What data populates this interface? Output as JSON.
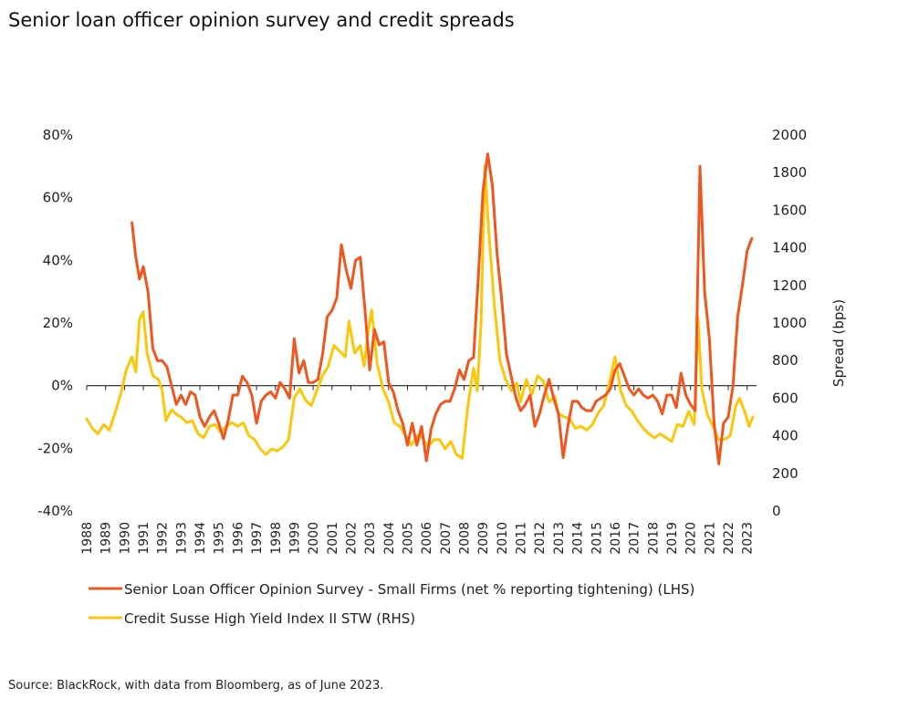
{
  "title": "Senior loan officer opinion survey and credit spreads",
  "source": "Source: BlackRock, with data from Bloomberg, as of June 2023.",
  "chart_data": {
    "type": "line",
    "ylabel_right": "Spread (bps)",
    "y_left": {
      "lim": [
        -40,
        80
      ],
      "ticks": [
        "80%",
        "60%",
        "40%",
        "20%",
        "0%",
        "-20%",
        "-40%"
      ],
      "tick_values": [
        80,
        60,
        40,
        20,
        0,
        -20,
        -40
      ]
    },
    "y_right": {
      "lim": [
        0,
        2000
      ],
      "ticks": [
        "2000",
        "1800",
        "1600",
        "1400",
        "1200",
        "1000",
        "800",
        "600",
        "400",
        "200",
        "0"
      ],
      "tick_values": [
        2000,
        1800,
        1600,
        1400,
        1200,
        1000,
        800,
        600,
        400,
        200,
        0
      ]
    },
    "x_ticks": [
      "1988",
      "1989",
      "1990",
      "1991",
      "1992",
      "1993",
      "1994",
      "1995",
      "1996",
      "1997",
      "1998",
      "1999",
      "2000",
      "2001",
      "2002",
      "2003",
      "2004",
      "2005",
      "2006",
      "2007",
      "2008",
      "2009",
      "2010",
      "2011",
      "2012",
      "2013",
      "2014",
      "2015",
      "2016",
      "2017",
      "2018",
      "2019",
      "2020",
      "2021",
      "2022",
      "2023"
    ],
    "xlim": [
      1988,
      2023.5
    ],
    "series": [
      {
        "name": "Senior Loan Officer Opinion Survey - Small Firms (net % reporting tightening) (LHS)",
        "axis": "left",
        "color": "#f0561e",
        "points": [
          [
            1990.4,
            52
          ],
          [
            1990.6,
            41
          ],
          [
            1990.8,
            34
          ],
          [
            1991.0,
            38
          ],
          [
            1991.25,
            30
          ],
          [
            1991.5,
            12
          ],
          [
            1991.75,
            8
          ],
          [
            1992.0,
            8
          ],
          [
            1992.25,
            6
          ],
          [
            1992.5,
            0
          ],
          [
            1992.75,
            -6
          ],
          [
            1993.0,
            -3
          ],
          [
            1993.25,
            -6
          ],
          [
            1993.5,
            -2
          ],
          [
            1993.75,
            -3
          ],
          [
            1994.0,
            -10
          ],
          [
            1994.25,
            -13
          ],
          [
            1994.5,
            -10
          ],
          [
            1994.75,
            -8
          ],
          [
            1995.0,
            -12
          ],
          [
            1995.25,
            -17
          ],
          [
            1995.5,
            -11
          ],
          [
            1995.75,
            -3
          ],
          [
            1996.0,
            -3
          ],
          [
            1996.25,
            3
          ],
          [
            1996.5,
            1
          ],
          [
            1996.75,
            -3
          ],
          [
            1997.0,
            -12
          ],
          [
            1997.25,
            -5
          ],
          [
            1997.5,
            -3
          ],
          [
            1997.75,
            -2
          ],
          [
            1998.0,
            -4
          ],
          [
            1998.25,
            1
          ],
          [
            1998.5,
            -1
          ],
          [
            1998.75,
            -4
          ],
          [
            1999.0,
            15
          ],
          [
            1999.25,
            4
          ],
          [
            1999.5,
            8
          ],
          [
            1999.75,
            1
          ],
          [
            2000.0,
            1
          ],
          [
            2000.25,
            2
          ],
          [
            2000.5,
            10
          ],
          [
            2000.75,
            22
          ],
          [
            2001.0,
            24
          ],
          [
            2001.25,
            28
          ],
          [
            2001.5,
            45
          ],
          [
            2001.75,
            37
          ],
          [
            2002.0,
            31
          ],
          [
            2002.25,
            40
          ],
          [
            2002.5,
            41
          ],
          [
            2002.75,
            24
          ],
          [
            2003.0,
            5
          ],
          [
            2003.25,
            18
          ],
          [
            2003.5,
            13
          ],
          [
            2003.75,
            14
          ],
          [
            2004.0,
            1
          ],
          [
            2004.25,
            -2
          ],
          [
            2004.5,
            -8
          ],
          [
            2004.75,
            -12
          ],
          [
            2005.0,
            -19
          ],
          [
            2005.25,
            -12
          ],
          [
            2005.5,
            -19
          ],
          [
            2005.75,
            -13
          ],
          [
            2006.0,
            -24
          ],
          [
            2006.25,
            -14
          ],
          [
            2006.5,
            -9
          ],
          [
            2006.75,
            -6
          ],
          [
            2007.0,
            -5
          ],
          [
            2007.25,
            -5
          ],
          [
            2007.5,
            -1
          ],
          [
            2007.75,
            5
          ],
          [
            2008.0,
            2
          ],
          [
            2008.25,
            8
          ],
          [
            2008.5,
            9
          ],
          [
            2008.75,
            34
          ],
          [
            2009.0,
            62
          ],
          [
            2009.25,
            74
          ],
          [
            2009.5,
            64
          ],
          [
            2009.75,
            42
          ],
          [
            2010.0,
            27
          ],
          [
            2010.25,
            10
          ],
          [
            2010.5,
            3
          ],
          [
            2010.75,
            -4
          ],
          [
            2011.0,
            -8
          ],
          [
            2011.25,
            -6
          ],
          [
            2011.5,
            -3
          ],
          [
            2011.75,
            -13
          ],
          [
            2012.0,
            -9
          ],
          [
            2012.25,
            -3
          ],
          [
            2012.5,
            2
          ],
          [
            2012.75,
            -4
          ],
          [
            2013.0,
            -9
          ],
          [
            2013.25,
            -23
          ],
          [
            2013.5,
            -13
          ],
          [
            2013.75,
            -5
          ],
          [
            2014.0,
            -5
          ],
          [
            2014.25,
            -7
          ],
          [
            2014.5,
            -8
          ],
          [
            2014.75,
            -8
          ],
          [
            2015.0,
            -5
          ],
          [
            2015.25,
            -4
          ],
          [
            2015.5,
            -3
          ],
          [
            2015.75,
            -1
          ],
          [
            2016.0,
            5
          ],
          [
            2016.25,
            7
          ],
          [
            2016.5,
            3
          ],
          [
            2016.75,
            -1
          ],
          [
            2017.0,
            -3
          ],
          [
            2017.25,
            -1
          ],
          [
            2017.5,
            -3
          ],
          [
            2017.75,
            -4
          ],
          [
            2018.0,
            -3
          ],
          [
            2018.25,
            -5
          ],
          [
            2018.5,
            -9
          ],
          [
            2018.75,
            -3
          ],
          [
            2019.0,
            -3
          ],
          [
            2019.25,
            -7
          ],
          [
            2019.5,
            4
          ],
          [
            2019.75,
            -3
          ],
          [
            2020.0,
            -6
          ],
          [
            2020.25,
            -8
          ],
          [
            2020.5,
            70
          ],
          [
            2020.75,
            30
          ],
          [
            2021.0,
            15
          ],
          [
            2021.25,
            -12
          ],
          [
            2021.5,
            -25
          ],
          [
            2021.75,
            -12
          ],
          [
            2022.0,
            -10
          ],
          [
            2022.25,
            0
          ],
          [
            2022.5,
            22
          ],
          [
            2022.75,
            32
          ],
          [
            2023.0,
            43
          ],
          [
            2023.25,
            47
          ]
        ]
      },
      {
        "name": "Credit Susse High Yield Index II STW (RHS)",
        "axis": "right",
        "color": "#fbc70b",
        "points": [
          [
            1988.0,
            490
          ],
          [
            1988.3,
            440
          ],
          [
            1988.6,
            410
          ],
          [
            1988.9,
            460
          ],
          [
            1989.2,
            430
          ],
          [
            1989.5,
            520
          ],
          [
            1989.8,
            620
          ],
          [
            1990.1,
            750
          ],
          [
            1990.4,
            820
          ],
          [
            1990.6,
            740
          ],
          [
            1990.8,
            1020
          ],
          [
            1991.0,
            1060
          ],
          [
            1991.2,
            840
          ],
          [
            1991.5,
            720
          ],
          [
            1991.8,
            700
          ],
          [
            1992.0,
            640
          ],
          [
            1992.2,
            480
          ],
          [
            1992.5,
            540
          ],
          [
            1992.8,
            510
          ],
          [
            1993.0,
            500
          ],
          [
            1993.3,
            470
          ],
          [
            1993.6,
            480
          ],
          [
            1993.9,
            410
          ],
          [
            1994.2,
            390
          ],
          [
            1994.5,
            450
          ],
          [
            1994.8,
            460
          ],
          [
            1995.1,
            420
          ],
          [
            1995.4,
            450
          ],
          [
            1995.7,
            470
          ],
          [
            1996.0,
            450
          ],
          [
            1996.3,
            470
          ],
          [
            1996.6,
            400
          ],
          [
            1996.9,
            380
          ],
          [
            1997.2,
            330
          ],
          [
            1997.5,
            300
          ],
          [
            1997.8,
            330
          ],
          [
            1998.1,
            320
          ],
          [
            1998.4,
            340
          ],
          [
            1998.7,
            380
          ],
          [
            1999.0,
            600
          ],
          [
            1999.3,
            650
          ],
          [
            1999.6,
            590
          ],
          [
            1999.9,
            560
          ],
          [
            2000.2,
            640
          ],
          [
            2000.5,
            720
          ],
          [
            2000.8,
            770
          ],
          [
            2001.1,
            880
          ],
          [
            2001.4,
            850
          ],
          [
            2001.7,
            820
          ],
          [
            2001.9,
            1010
          ],
          [
            2002.2,
            840
          ],
          [
            2002.5,
            880
          ],
          [
            2002.7,
            770
          ],
          [
            2002.9,
            940
          ],
          [
            2003.1,
            1070
          ],
          [
            2003.4,
            780
          ],
          [
            2003.7,
            650
          ],
          [
            2004.0,
            580
          ],
          [
            2004.3,
            470
          ],
          [
            2004.6,
            450
          ],
          [
            2004.9,
            400
          ],
          [
            2005.2,
            350
          ],
          [
            2005.5,
            400
          ],
          [
            2005.8,
            390
          ],
          [
            2006.1,
            340
          ],
          [
            2006.4,
            380
          ],
          [
            2006.7,
            380
          ],
          [
            2007.0,
            330
          ],
          [
            2007.3,
            370
          ],
          [
            2007.6,
            300
          ],
          [
            2007.9,
            280
          ],
          [
            2008.2,
            560
          ],
          [
            2008.5,
            760
          ],
          [
            2008.7,
            640
          ],
          [
            2008.9,
            1000
          ],
          [
            2009.1,
            1840
          ],
          [
            2009.3,
            1500
          ],
          [
            2009.6,
            1100
          ],
          [
            2009.9,
            800
          ],
          [
            2010.2,
            700
          ],
          [
            2010.5,
            640
          ],
          [
            2010.8,
            680
          ],
          [
            2011.0,
            580
          ],
          [
            2011.3,
            700
          ],
          [
            2011.6,
            620
          ],
          [
            2011.9,
            720
          ],
          [
            2012.2,
            690
          ],
          [
            2012.5,
            580
          ],
          [
            2012.8,
            610
          ],
          [
            2013.0,
            520
          ],
          [
            2013.3,
            500
          ],
          [
            2013.6,
            490
          ],
          [
            2013.9,
            440
          ],
          [
            2014.2,
            450
          ],
          [
            2014.5,
            430
          ],
          [
            2014.8,
            460
          ],
          [
            2015.1,
            520
          ],
          [
            2015.4,
            560
          ],
          [
            2015.7,
            680
          ],
          [
            2016.0,
            820
          ],
          [
            2016.3,
            640
          ],
          [
            2016.6,
            560
          ],
          [
            2016.9,
            530
          ],
          [
            2017.2,
            480
          ],
          [
            2017.5,
            440
          ],
          [
            2017.8,
            410
          ],
          [
            2018.1,
            390
          ],
          [
            2018.4,
            410
          ],
          [
            2018.7,
            390
          ],
          [
            2019.0,
            370
          ],
          [
            2019.3,
            460
          ],
          [
            2019.6,
            450
          ],
          [
            2019.9,
            530
          ],
          [
            2020.2,
            460
          ],
          [
            2020.4,
            1030
          ],
          [
            2020.6,
            650
          ],
          [
            2020.9,
            510
          ],
          [
            2021.2,
            450
          ],
          [
            2021.5,
            380
          ],
          [
            2021.8,
            380
          ],
          [
            2022.1,
            400
          ],
          [
            2022.4,
            560
          ],
          [
            2022.6,
            600
          ],
          [
            2022.9,
            520
          ],
          [
            2023.1,
            450
          ],
          [
            2023.3,
            500
          ]
        ]
      }
    ]
  }
}
